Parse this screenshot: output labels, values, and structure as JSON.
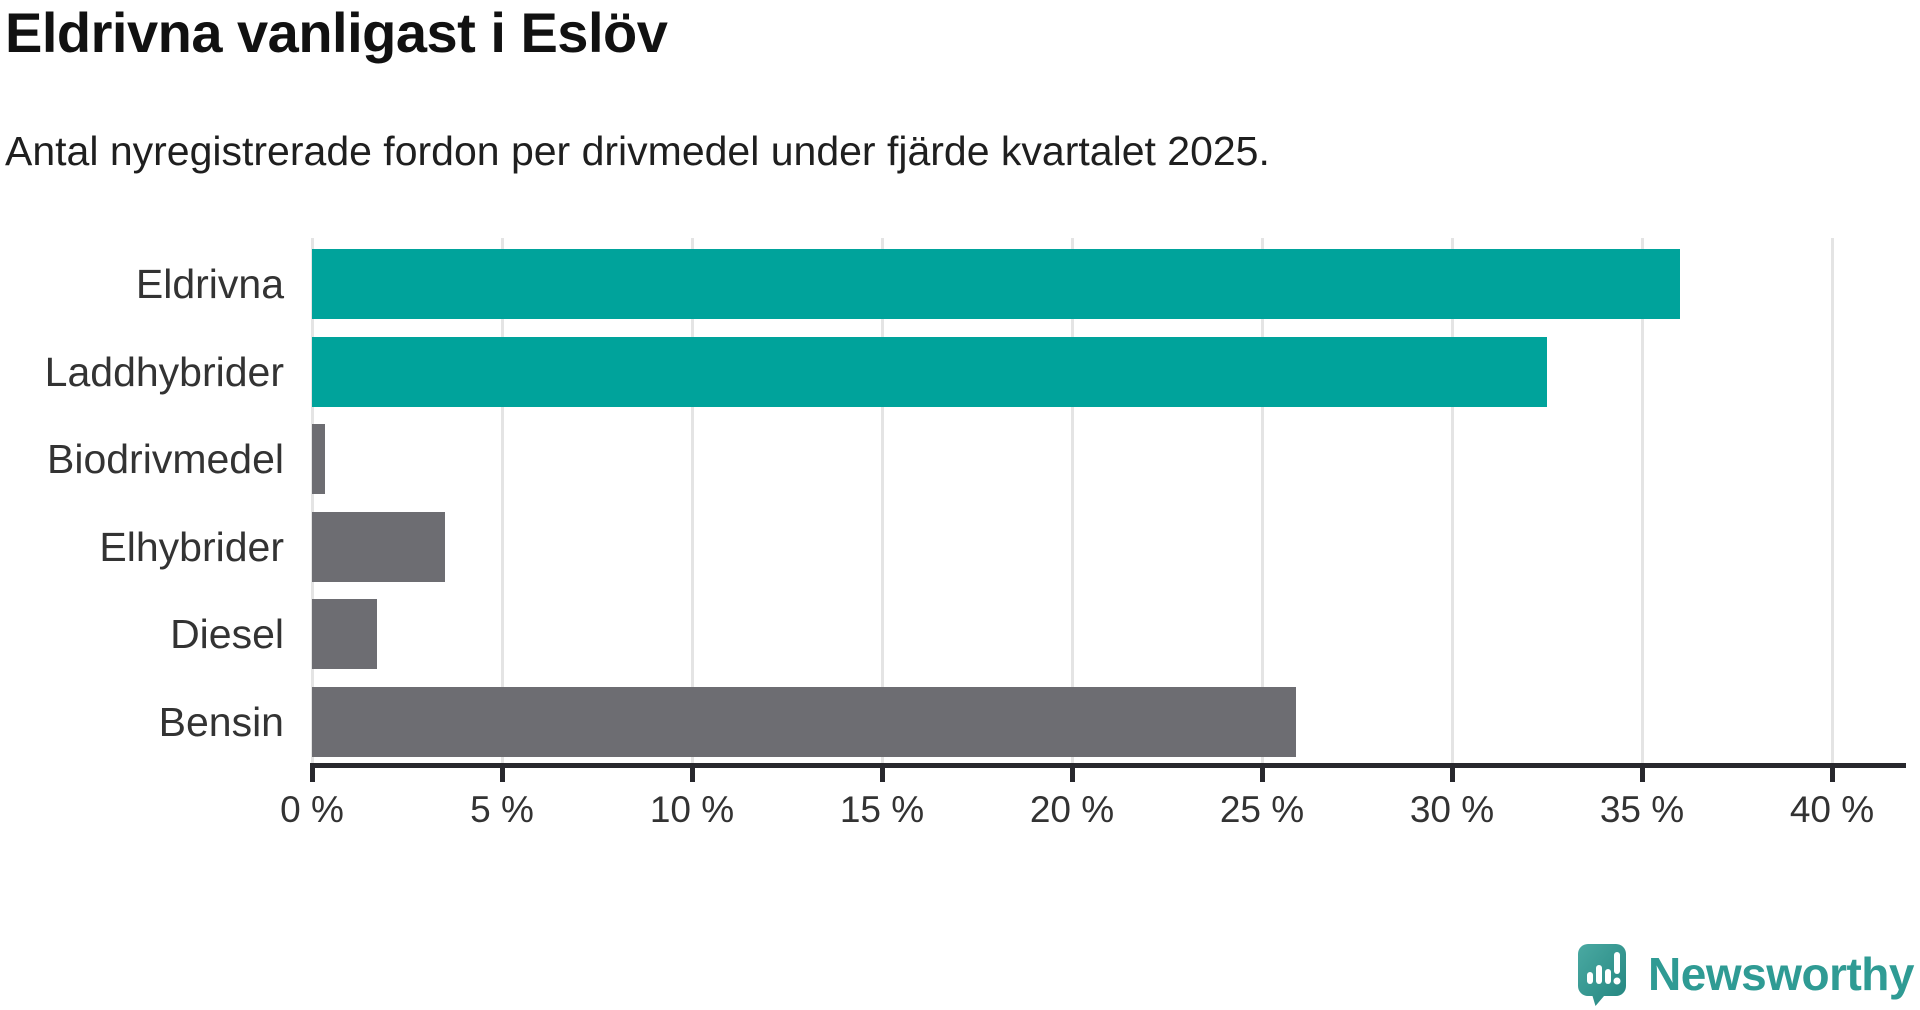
{
  "title": "Eldrivna vanligast i Eslöv",
  "subtitle": "Antal nyregistrerade fordon per drivmedel under fjärde kvartalet 2025.",
  "chart_data": {
    "type": "bar",
    "orientation": "horizontal",
    "title": "Eldrivna vanligast i Eslöv",
    "subtitle": "Antal nyregistrerade fordon per drivmedel under fjärde kvartalet 2025.",
    "categories": [
      "Eldrivna",
      "Laddhybrider",
      "Biodrivmedel",
      "Elhybrider",
      "Diesel",
      "Bensin"
    ],
    "values": [
      36,
      32.5,
      0.35,
      3.5,
      1.7,
      25.9
    ],
    "unit": "percent",
    "xlim": [
      0,
      40
    ],
    "x_tick_step": 5,
    "x_tick_labels": [
      "0 %",
      "5 %",
      "10 %",
      "15 %",
      "20 %",
      "25 %",
      "30 %",
      "35 %",
      "40 %"
    ],
    "grid": "vertical-gridlines-on",
    "legend": "none",
    "bar_colors": [
      "#00a39b",
      "#00a39b",
      "#6d6d72",
      "#6d6d72",
      "#6d6d72",
      "#6d6d72"
    ]
  },
  "colors": {
    "teal_bar": "#00a39b",
    "gray_bar": "#6d6d72",
    "axis_line": "#28282d",
    "gridline": "#e4e4e4",
    "label_text": "#333333",
    "logo_teal": "#2f9b94"
  },
  "logo": {
    "text": "Newsworthy",
    "icon": "speech-bubble-bar-chart-icon"
  }
}
